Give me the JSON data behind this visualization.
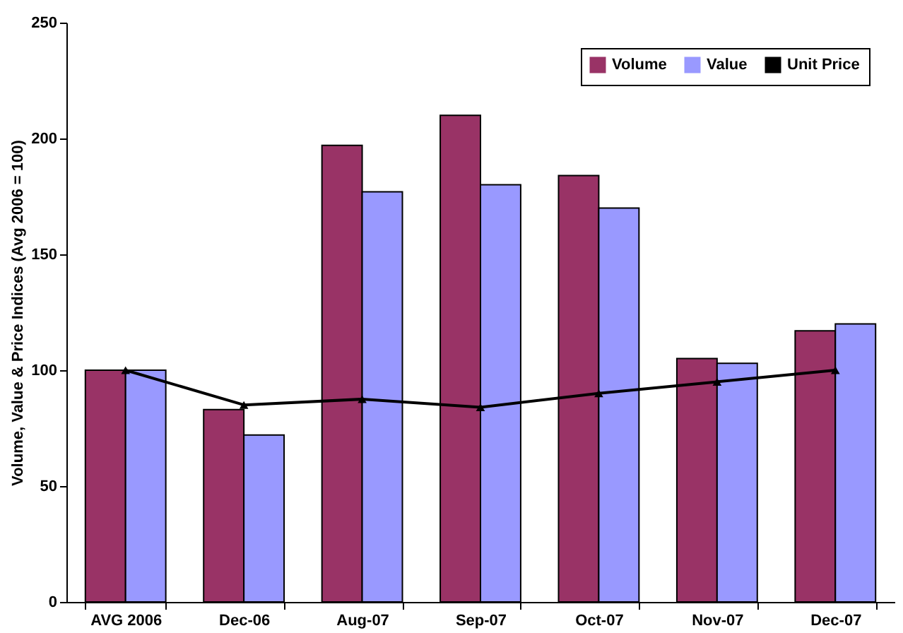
{
  "chart_data": {
    "type": "bar",
    "ylabel": "Volume, Value & Price Indices (Avg 2006 = 100)",
    "categories": [
      "AVG 2006",
      "Dec-06",
      "Aug-07",
      "Sep-07",
      "Oct-07",
      "Nov-07",
      "Dec-07"
    ],
    "series": [
      {
        "name": "Volume",
        "color": "#993366",
        "values": [
          100,
          83,
          197,
          210,
          184,
          105,
          117
        ]
      },
      {
        "name": "Value",
        "color": "#9999ff",
        "values": [
          100,
          72,
          177,
          180,
          170,
          103,
          120
        ]
      },
      {
        "name": "Unit Price",
        "type": "line",
        "color": "#000000",
        "values": [
          100,
          85,
          87.5,
          84,
          90,
          95,
          100
        ]
      }
    ],
    "ylim": [
      0,
      250
    ],
    "yticks": [
      0,
      50,
      100,
      150,
      200,
      250
    ],
    "grid": false,
    "legend": "top right",
    "marker": "triangle"
  }
}
